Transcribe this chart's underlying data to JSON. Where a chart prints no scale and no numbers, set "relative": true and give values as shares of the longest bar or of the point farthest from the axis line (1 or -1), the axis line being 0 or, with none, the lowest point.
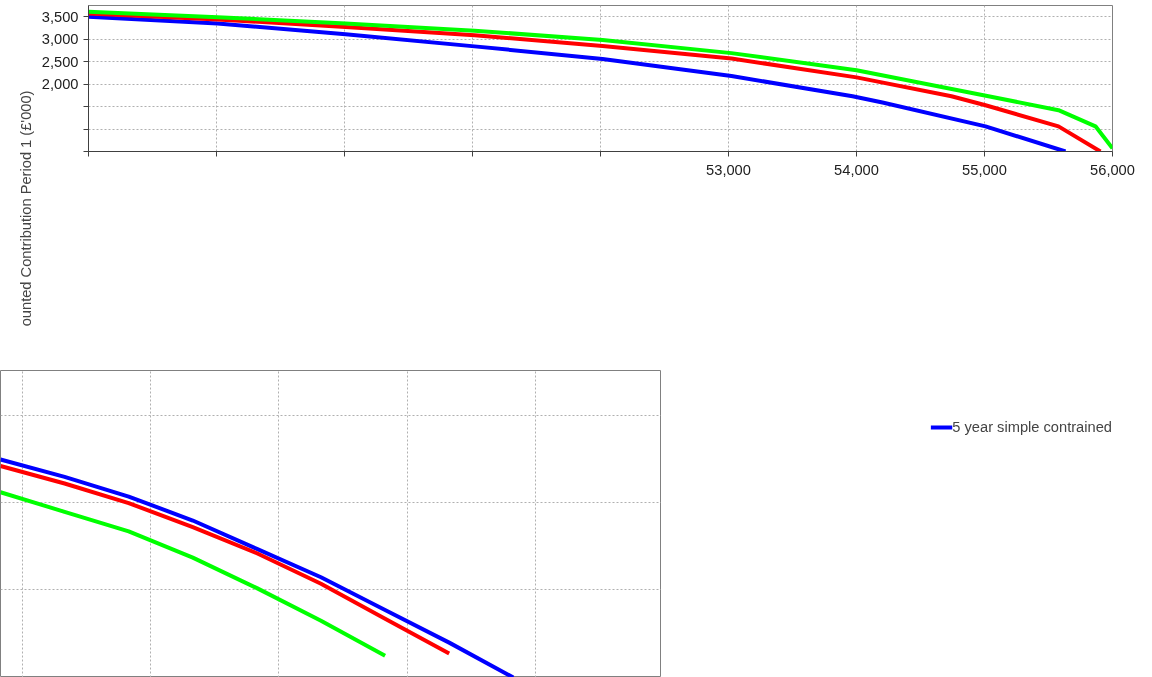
{
  "chart_data": [
    {
      "type": "line",
      "ylabel": "ounted Contribution Period 1 (£'000)",
      "x": [
        48000,
        49008,
        50008,
        51016,
        52016,
        53023,
        54000,
        54742,
        55008,
        55578,
        55906
      ],
      "xlim": [
        48000,
        56000
      ],
      "ylim": [
        500,
        3750
      ],
      "xticks": [
        {
          "value": 48000,
          "label": null
        },
        {
          "value": 49000,
          "label": null
        },
        {
          "value": 50000,
          "label": null
        },
        {
          "value": 51000,
          "label": null
        },
        {
          "value": 52000,
          "label": null
        },
        {
          "value": 53000,
          "label": "53,000"
        },
        {
          "value": 54000,
          "label": "54,000"
        },
        {
          "value": 55000,
          "label": "55,000"
        },
        {
          "value": 56000,
          "label": "56,000"
        }
      ],
      "yticks": [
        {
          "value": 500,
          "label": null
        },
        {
          "value": 1000,
          "label": null
        },
        {
          "value": 1500,
          "label": null
        },
        {
          "value": 2000,
          "label": "2,000"
        },
        {
          "value": 2500,
          "label": "2,500"
        },
        {
          "value": 3000,
          "label": "3,000"
        },
        {
          "value": 3500,
          "label": "3,500"
        }
      ],
      "grid": true,
      "legend": "bottom",
      "line_style": "solid",
      "series": [
        {
          "name": "5 year simple contrained",
          "color": "#0000ff",
          "x": [
            48000,
            49008,
            50008,
            51016,
            52016,
            53023,
            53969,
            54203,
            55008,
            55633
          ],
          "values": [
            3500,
            3350,
            3110,
            2840,
            2560,
            2180,
            1730,
            1590,
            1060,
            500
          ]
        },
        {
          "color": "#ff0000",
          "values": [
            3570,
            3440,
            3270,
            3090,
            2850,
            2570,
            2150,
            1730,
            1530,
            1060,
            500
          ]
        },
        {
          "color": "#00ff00",
          "x": [
            48000,
            49008,
            50008,
            51016,
            52016,
            53023,
            54000,
            55031,
            55578,
            55867,
            56000
          ],
          "values": [
            3610,
            3490,
            3350,
            3190,
            2980,
            2690,
            2310,
            1730,
            1420,
            1060,
            570
          ]
        }
      ]
    },
    {
      "type": "line",
      "relative": true,
      "grid": true,
      "line_style": "solid",
      "categories": [
        null,
        null,
        null,
        null,
        null,
        null,
        null,
        null,
        null
      ],
      "series": [
        {
          "color": "#0000ff",
          "values": [
            1.0,
            0.92,
            0.83,
            0.72,
            0.59,
            0.46,
            0.31,
            0.16,
            0.0
          ]
        },
        {
          "color": "#ff0000",
          "values": [
            0.97,
            0.89,
            0.8,
            0.69,
            0.57,
            0.43,
            0.27,
            0.11,
            null
          ]
        },
        {
          "color": "#00ff00",
          "values": [
            0.85,
            0.76,
            0.67,
            0.55,
            0.41,
            0.26,
            0.1,
            null,
            null
          ]
        }
      ]
    }
  ]
}
